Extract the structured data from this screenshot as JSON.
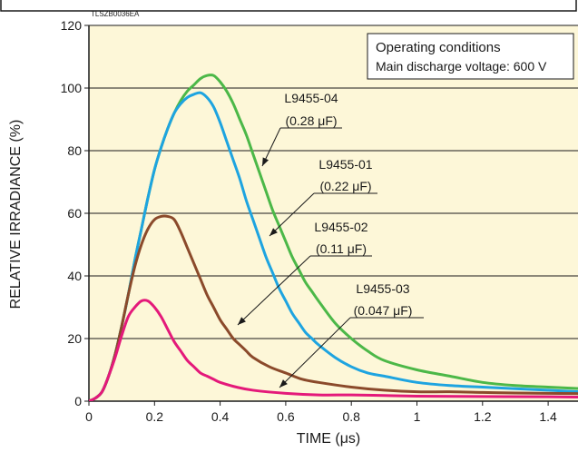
{
  "chart_data": {
    "type": "line",
    "figure_code": "TLSZB0036EA",
    "xlabel": "TIME (μs)",
    "ylabel": "RELATIVE IRRADIANCE (%)",
    "xlim": [
      0,
      1.5
    ],
    "ylim": [
      0,
      120
    ],
    "x_ticks": [
      0,
      0.2,
      0.4,
      0.6,
      0.8,
      1,
      1.2,
      1.4
    ],
    "x_tick_labels": [
      "0",
      "0.2",
      "0.4",
      "0.6",
      "0.8",
      "1",
      "1.2",
      "1.4"
    ],
    "y_ticks": [
      0,
      20,
      40,
      60,
      80,
      100,
      120
    ],
    "y_tick_labels": [
      "0",
      "20",
      "40",
      "60",
      "80",
      "100",
      "120"
    ],
    "grid": "horizontal",
    "background": "#fdf7d8",
    "legend_box": {
      "position": "top-right",
      "lines": [
        "Operating conditions",
        "Main discharge voltage: 600 V"
      ]
    },
    "series": [
      {
        "name": "L9455-04",
        "label_lines": [
          "L9455-04",
          "(0.28 μF)"
        ],
        "color": "#4cb848",
        "x": [
          0,
          0.02,
          0.04,
          0.06,
          0.08,
          0.1,
          0.12,
          0.14,
          0.16,
          0.18,
          0.2,
          0.22,
          0.24,
          0.26,
          0.28,
          0.3,
          0.32,
          0.34,
          0.36,
          0.38,
          0.4,
          0.42,
          0.44,
          0.46,
          0.48,
          0.5,
          0.52,
          0.54,
          0.56,
          0.58,
          0.6,
          0.62,
          0.64,
          0.66,
          0.68,
          0.7,
          0.75,
          0.8,
          0.85,
          0.9,
          1,
          1.1,
          1.2,
          1.3,
          1.4,
          1.5
        ],
        "y": [
          0,
          1,
          3,
          8,
          15,
          24,
          34,
          45,
          55,
          65,
          74,
          81,
          87,
          92,
          96,
          99,
          101,
          103,
          104,
          104,
          102,
          99,
          95,
          90,
          85,
          79,
          73,
          67,
          61,
          56,
          51,
          46,
          42,
          38,
          35,
          32,
          25,
          20,
          16,
          13,
          10,
          8,
          6,
          5,
          4.5,
          4
        ]
      },
      {
        "name": "L9455-01",
        "label_lines": [
          "L9455-01",
          "(0.22 μF)"
        ],
        "color": "#1ea4e0",
        "x": [
          0,
          0.02,
          0.04,
          0.06,
          0.08,
          0.1,
          0.12,
          0.14,
          0.16,
          0.18,
          0.2,
          0.22,
          0.24,
          0.26,
          0.28,
          0.3,
          0.32,
          0.34,
          0.36,
          0.38,
          0.4,
          0.42,
          0.44,
          0.46,
          0.48,
          0.5,
          0.52,
          0.54,
          0.56,
          0.58,
          0.6,
          0.62,
          0.64,
          0.66,
          0.68,
          0.7,
          0.75,
          0.8,
          0.85,
          0.9,
          1,
          1.1,
          1.2,
          1.3,
          1.4,
          1.5
        ],
        "y": [
          0,
          1,
          3,
          8,
          15,
          24,
          34,
          45,
          55,
          65,
          74,
          81,
          87,
          92,
          95,
          97,
          98,
          98.5,
          97,
          94,
          89,
          83,
          77,
          71,
          64,
          58,
          52,
          46,
          41,
          36,
          32,
          28,
          25,
          22,
          20,
          18,
          14,
          11,
          9,
          8,
          6,
          5,
          4.5,
          4,
          3.5,
          3
        ]
      },
      {
        "name": "L9455-02",
        "label_lines": [
          "L9455-02",
          "(0.11 μF)"
        ],
        "color": "#8b4a2b",
        "x": [
          0,
          0.02,
          0.04,
          0.06,
          0.08,
          0.1,
          0.12,
          0.14,
          0.16,
          0.18,
          0.2,
          0.22,
          0.24,
          0.26,
          0.28,
          0.3,
          0.32,
          0.34,
          0.36,
          0.38,
          0.4,
          0.42,
          0.44,
          0.46,
          0.48,
          0.5,
          0.55,
          0.6,
          0.65,
          0.7,
          0.8,
          0.9,
          1,
          1.1,
          1.2,
          1.3,
          1.4,
          1.5
        ],
        "y": [
          0,
          1,
          3,
          8,
          15,
          24,
          34,
          43,
          50,
          55,
          58,
          59,
          59,
          58,
          54,
          49,
          44,
          39,
          34,
          30,
          26,
          23,
          20,
          18,
          16,
          14,
          11,
          9,
          7,
          6,
          4.5,
          3.5,
          3,
          3,
          2.8,
          2.6,
          2.5,
          2.4
        ]
      },
      {
        "name": "L9455-03",
        "label_lines": [
          "L9455-03",
          "(0.047 μF)"
        ],
        "color": "#e4197a",
        "x": [
          0,
          0.02,
          0.04,
          0.06,
          0.08,
          0.1,
          0.12,
          0.14,
          0.16,
          0.18,
          0.2,
          0.22,
          0.24,
          0.26,
          0.28,
          0.3,
          0.32,
          0.34,
          0.36,
          0.38,
          0.4,
          0.45,
          0.5,
          0.6,
          0.7,
          0.8,
          0.9,
          1,
          1.2,
          1.4,
          1.5
        ],
        "y": [
          0,
          1,
          3,
          8,
          14,
          21,
          27,
          30,
          32,
          32,
          30,
          27,
          23,
          19,
          16,
          13,
          11,
          9,
          8,
          7,
          6,
          4.5,
          3.5,
          2.5,
          2,
          2,
          1.8,
          1.6,
          1.5,
          1.4,
          1.3
        ]
      }
    ]
  }
}
